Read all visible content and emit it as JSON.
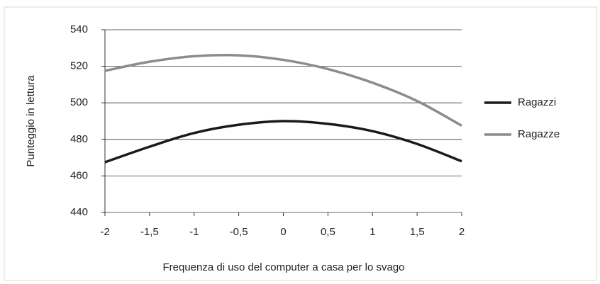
{
  "chart_data": {
    "type": "line",
    "x_label": "Frequenza di uso del computer a casa per lo svago",
    "y_label": "Punteggio in lettura",
    "x": [
      -2,
      -1.5,
      -1,
      -0.5,
      0,
      0.5,
      1,
      1.5,
      2
    ],
    "series": [
      {
        "name": "Ragazzi",
        "color": "#1a1a1a",
        "values": [
          467.5,
          476,
          483.5,
          488,
          490,
          488.5,
          484.5,
          477.5,
          468
        ]
      },
      {
        "name": "Ragazze",
        "color": "#8c8c8c",
        "values": [
          517.5,
          522.5,
          525.5,
          526,
          523.5,
          518.5,
          511,
          501,
          487.5
        ]
      }
    ],
    "xlim": [
      -2,
      2
    ],
    "xticks": [
      -2,
      {
        "value": -1.5,
        "label": "-1,5"
      },
      -1,
      {
        "value": -0.5,
        "label": "-0,5"
      },
      0,
      {
        "value": 0.5,
        "label": "0,5"
      },
      1,
      {
        "value": 1.5,
        "label": "1,5"
      },
      2
    ],
    "ylim": [
      440,
      540
    ],
    "yticks": [
      440,
      460,
      480,
      500,
      520,
      540
    ],
    "grid": true
  }
}
